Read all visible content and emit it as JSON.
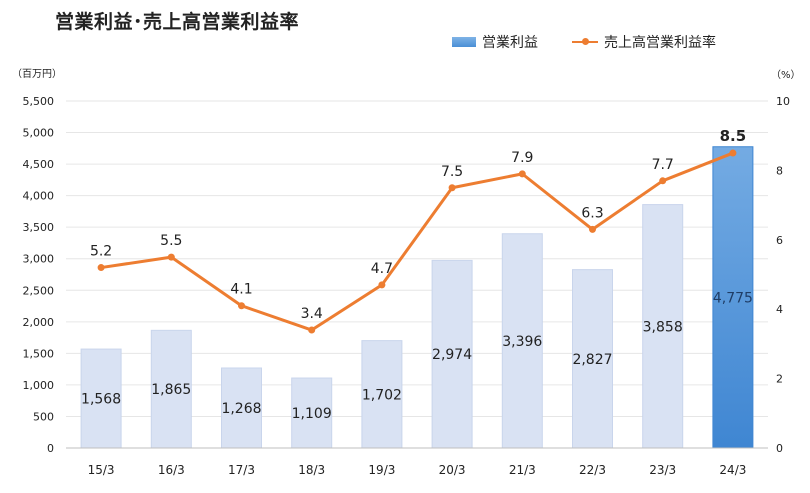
{
  "chart_data": {
    "type": "bar",
    "title": "営業利益･売上高営業利益率",
    "categories": [
      "15/3",
      "16/3",
      "17/3",
      "18/3",
      "19/3",
      "20/3",
      "21/3",
      "22/3",
      "23/3",
      "24/3"
    ],
    "series": [
      {
        "name": "営業利益",
        "type": "bar",
        "axis": "left",
        "values": [
          1568,
          1865,
          1268,
          1109,
          1702,
          2974,
          3396,
          2827,
          3858,
          4775
        ],
        "value_labels": [
          "1,568",
          "1,865",
          "1,268",
          "1,109",
          "1,702",
          "2,974",
          "3,396",
          "2,827",
          "3,858",
          "4,775"
        ],
        "color": "#d9e2f3",
        "highlight_color": "#4a8fd6",
        "highlight_index": 9
      },
      {
        "name": "売上高営業利益率",
        "type": "line",
        "axis": "right",
        "values": [
          5.2,
          5.5,
          4.1,
          3.4,
          4.7,
          7.5,
          7.9,
          6.3,
          7.7,
          8.5
        ],
        "value_labels": [
          "5.2",
          "5.5",
          "4.1",
          "3.4",
          "4.7",
          "7.5",
          "7.9",
          "6.3",
          "7.7",
          "8.5"
        ],
        "color": "#ed7d31",
        "highlight_index": 9
      }
    ],
    "y_left": {
      "unit": "（百万円）",
      "ylim": [
        0,
        5500
      ],
      "ticks": [
        0,
        500,
        1000,
        1500,
        2000,
        2500,
        3000,
        3500,
        4000,
        4500,
        5000,
        5500
      ],
      "tick_labels": [
        "0",
        "500",
        "1,000",
        "1,500",
        "2,000",
        "2,500",
        "3,000",
        "3,500",
        "4,000",
        "4,500",
        "5,000",
        "5,500"
      ]
    },
    "y_right": {
      "unit": "（%）",
      "ylim": [
        0,
        10
      ],
      "ticks": [
        0,
        2,
        4,
        6,
        8,
        10
      ],
      "tick_labels": [
        "0",
        "2",
        "4",
        "6",
        "8",
        "10"
      ]
    },
    "grid": true,
    "legend_position": "top-right"
  }
}
